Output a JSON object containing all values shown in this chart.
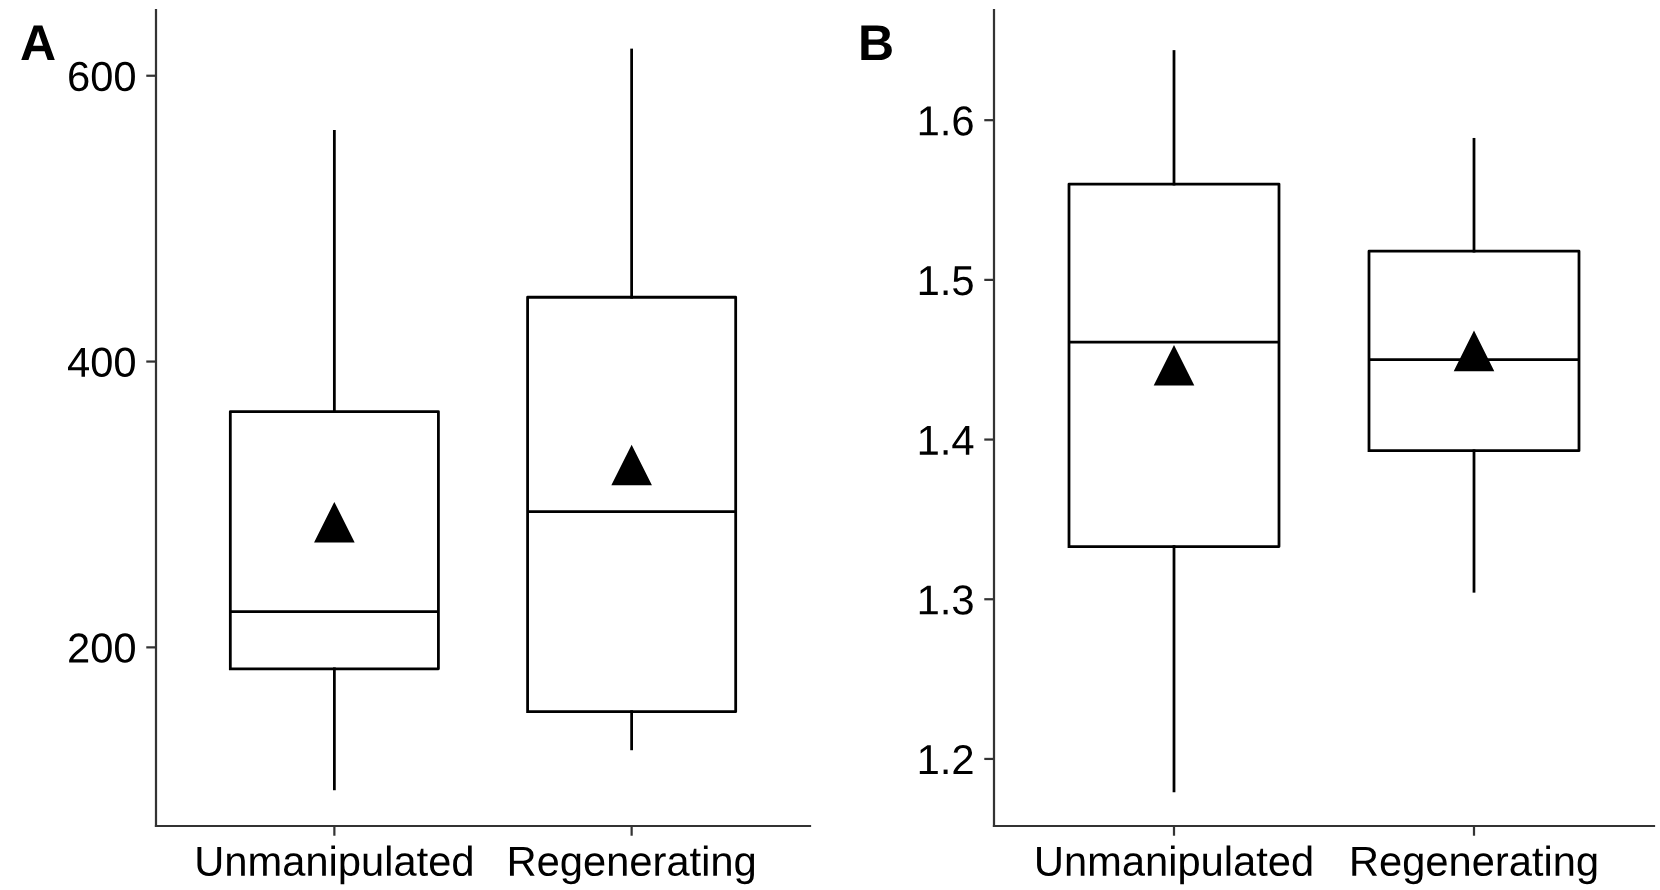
{
  "chart_data": [
    {
      "type": "box",
      "title": "A",
      "categories": [
        "Unmanipulated",
        "Regenerating"
      ],
      "marker": "triangle",
      "ylim": [
        75,
        646
      ],
      "yticks": [
        200,
        400,
        600
      ],
      "grid": false,
      "boxes": [
        {
          "low": 101,
          "q1": 185,
          "median": 225,
          "q3": 365,
          "high": 561,
          "mean": 287
        },
        {
          "low": 129,
          "q1": 155,
          "median": 295,
          "q3": 445,
          "high": 618,
          "mean": 327
        }
      ]
    },
    {
      "type": "box",
      "title": "B",
      "categories": [
        "Unmanipulated",
        "Regenerating"
      ],
      "marker": "triangle",
      "ylim": [
        1.158,
        1.669
      ],
      "yticks": [
        1.2,
        1.3,
        1.4,
        1.5,
        1.6
      ],
      "grid": false,
      "boxes": [
        {
          "low": 1.18,
          "q1": 1.333,
          "median": 1.461,
          "q3": 1.56,
          "high": 1.643,
          "mean": 1.446
        },
        {
          "low": 1.305,
          "q1": 1.393,
          "median": 1.45,
          "q3": 1.518,
          "high": 1.588,
          "mean": 1.455
        }
      ]
    }
  ]
}
